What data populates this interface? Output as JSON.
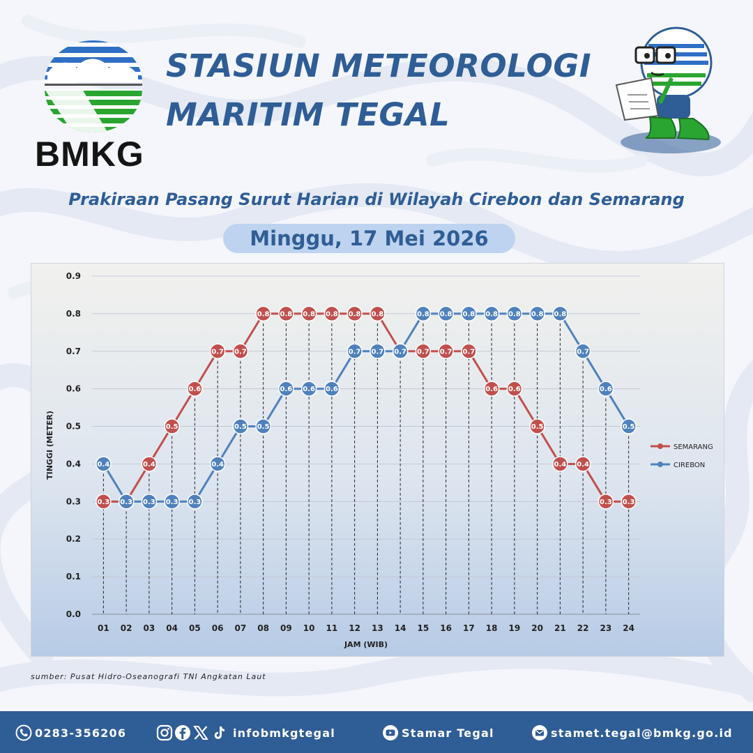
{
  "header": {
    "logo_text": "BMKG",
    "title_line1": "STASIUN METEOROLOGI",
    "title_line2": "MARITIM TEGAL",
    "subtitle": "Prakiraan Pasang Surut Harian di Wilayah Cirebon dan Semarang",
    "date": "Minggu, 17 Mei 2026"
  },
  "colors": {
    "brand_blue": "#2f5d96",
    "semarang": "#c0504d",
    "cirebon": "#4f81bd",
    "pill": "#bed3ef"
  },
  "icons": {
    "logo": "bmkg-logo",
    "mascot": "mascot-icon",
    "phone": "phone-icon",
    "social": [
      "instagram-icon",
      "facebook-icon",
      "x-icon",
      "tiktok-icon"
    ],
    "youtube": "youtube-icon",
    "email": "email-icon"
  },
  "chart_data": {
    "type": "line",
    "title": "",
    "xlabel": "JAM (WIB)",
    "ylabel": "TINGGI (METER)",
    "ylim": [
      0,
      0.9
    ],
    "yticks": [
      0.0,
      0.1,
      0.2,
      0.3,
      0.4,
      0.5,
      0.6,
      0.7,
      0.8,
      0.9
    ],
    "grid": true,
    "legend": "right",
    "categories": [
      "01",
      "02",
      "03",
      "04",
      "05",
      "06",
      "07",
      "08",
      "09",
      "10",
      "11",
      "12",
      "13",
      "14",
      "15",
      "16",
      "17",
      "18",
      "19",
      "20",
      "21",
      "22",
      "23",
      "24"
    ],
    "series": [
      {
        "name": "SEMARANG",
        "color": "#c0504d",
        "values": [
          0.3,
          0.3,
          0.4,
          0.5,
          0.6,
          0.7,
          0.7,
          0.8,
          0.8,
          0.8,
          0.8,
          0.8,
          0.8,
          0.7,
          0.7,
          0.7,
          0.7,
          0.6,
          0.6,
          0.5,
          0.4,
          0.4,
          0.3,
          0.3
        ]
      },
      {
        "name": "CIREBON",
        "color": "#4f81bd",
        "values": [
          0.4,
          0.3,
          0.3,
          0.3,
          0.3,
          0.4,
          0.5,
          0.5,
          0.6,
          0.6,
          0.6,
          0.7,
          0.7,
          0.7,
          0.8,
          0.8,
          0.8,
          0.8,
          0.8,
          0.8,
          0.8,
          0.7,
          0.6,
          0.5
        ]
      }
    ]
  },
  "source": "sumber: Pusat Hidro-Oseanografi TNI Angkatan Laut",
  "footer": {
    "phone": "0283-356206",
    "social_handle": "infobmkgtegal",
    "youtube": "Stamar Tegal",
    "email": "stamet.tegal@bmkg.go.id"
  }
}
